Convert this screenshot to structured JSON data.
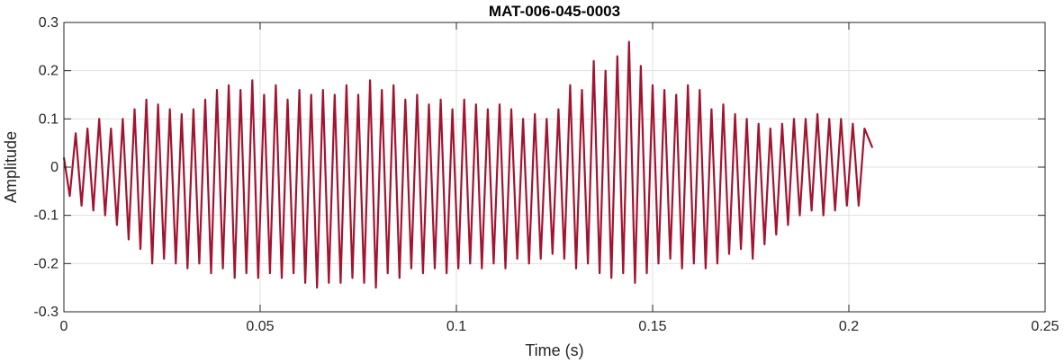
{
  "chart_data": {
    "type": "line",
    "title": "MAT-006-045-0003",
    "xlabel": "Time (s)",
    "ylabel": "Amplitude",
    "xlim": [
      0,
      0.25
    ],
    "ylim": [
      -0.3,
      0.3
    ],
    "x_ticks": [
      0,
      0.05,
      0.1,
      0.15,
      0.2,
      0.25
    ],
    "x_tick_labels": [
      "0",
      "0.05",
      "0.1",
      "0.15",
      "0.2",
      "0.25"
    ],
    "y_ticks": [
      -0.3,
      -0.2,
      -0.1,
      0,
      0.1,
      0.2,
      0.3
    ],
    "y_tick_labels": [
      "-0.3",
      "-0.2",
      "-0.1",
      "0",
      "0.1",
      "0.2",
      "0.3"
    ],
    "grid": true,
    "series": [
      {
        "color": "#A2142F",
        "x_start": 0,
        "x_end": 0.206,
        "x": [
          0.0,
          0.0015,
          0.003,
          0.0045,
          0.006,
          0.0075,
          0.009,
          0.0105,
          0.012,
          0.0135,
          0.015,
          0.0165,
          0.018,
          0.0195,
          0.021,
          0.0225,
          0.024,
          0.0255,
          0.027,
          0.0285,
          0.03,
          0.0315,
          0.033,
          0.0345,
          0.036,
          0.0375,
          0.039,
          0.0405,
          0.042,
          0.0435,
          0.045,
          0.0465,
          0.048,
          0.0495,
          0.051,
          0.0525,
          0.054,
          0.0555,
          0.057,
          0.0585,
          0.06,
          0.0615,
          0.063,
          0.0645,
          0.066,
          0.0675,
          0.069,
          0.0705,
          0.072,
          0.0735,
          0.075,
          0.0765,
          0.078,
          0.0795,
          0.081,
          0.0825,
          0.084,
          0.0855,
          0.087,
          0.0885,
          0.09,
          0.0915,
          0.093,
          0.0945,
          0.096,
          0.0975,
          0.099,
          0.1005,
          0.102,
          0.1035,
          0.105,
          0.1065,
          0.108,
          0.1095,
          0.111,
          0.1125,
          0.114,
          0.1155,
          0.117,
          0.1185,
          0.12,
          0.1215,
          0.123,
          0.1245,
          0.126,
          0.1275,
          0.129,
          0.1305,
          0.132,
          0.1335,
          0.135,
          0.1365,
          0.138,
          0.1395,
          0.141,
          0.1425,
          0.144,
          0.1455,
          0.147,
          0.1485,
          0.15,
          0.1515,
          0.153,
          0.1545,
          0.156,
          0.1575,
          0.159,
          0.1605,
          0.162,
          0.1635,
          0.165,
          0.1665,
          0.168,
          0.1695,
          0.171,
          0.1725,
          0.174,
          0.1755,
          0.177,
          0.1785,
          0.18,
          0.1815,
          0.183,
          0.1845,
          0.186,
          0.1875,
          0.189,
          0.1905,
          0.192,
          0.1935,
          0.195,
          0.1965,
          0.198,
          0.1995,
          0.201,
          0.2025,
          0.204,
          0.206
        ],
        "y": [
          0.02,
          -0.06,
          0.07,
          -0.08,
          0.08,
          -0.09,
          0.1,
          -0.1,
          0.08,
          -0.12,
          0.1,
          -0.15,
          0.12,
          -0.17,
          0.14,
          -0.2,
          0.13,
          -0.19,
          0.12,
          -0.2,
          0.11,
          -0.21,
          0.12,
          -0.2,
          0.14,
          -0.22,
          0.16,
          -0.21,
          0.17,
          -0.23,
          0.16,
          -0.22,
          0.18,
          -0.23,
          0.15,
          -0.22,
          0.17,
          -0.23,
          0.14,
          -0.22,
          0.16,
          -0.24,
          0.15,
          -0.25,
          0.16,
          -0.24,
          0.15,
          -0.24,
          0.17,
          -0.23,
          0.15,
          -0.24,
          0.18,
          -0.25,
          0.16,
          -0.22,
          0.17,
          -0.23,
          0.14,
          -0.21,
          0.15,
          -0.22,
          0.13,
          -0.21,
          0.14,
          -0.22,
          0.12,
          -0.21,
          0.14,
          -0.2,
          0.13,
          -0.21,
          0.12,
          -0.2,
          0.13,
          -0.21,
          0.12,
          -0.19,
          0.1,
          -0.2,
          0.11,
          -0.19,
          0.1,
          -0.18,
          0.12,
          -0.19,
          0.17,
          -0.21,
          0.16,
          -0.2,
          0.22,
          -0.22,
          0.2,
          -0.23,
          0.23,
          -0.22,
          0.26,
          -0.24,
          0.21,
          -0.22,
          0.17,
          -0.2,
          0.16,
          -0.19,
          0.15,
          -0.21,
          0.17,
          -0.2,
          0.16,
          -0.21,
          0.12,
          -0.2,
          0.13,
          -0.18,
          0.11,
          -0.17,
          0.1,
          -0.19,
          0.09,
          -0.16,
          0.08,
          -0.14,
          0.09,
          -0.12,
          0.1,
          -0.1,
          0.1,
          -0.09,
          0.11,
          -0.1,
          0.1,
          -0.09,
          0.1,
          -0.08,
          0.09,
          -0.08,
          0.08,
          0.04
        ]
      }
    ]
  }
}
